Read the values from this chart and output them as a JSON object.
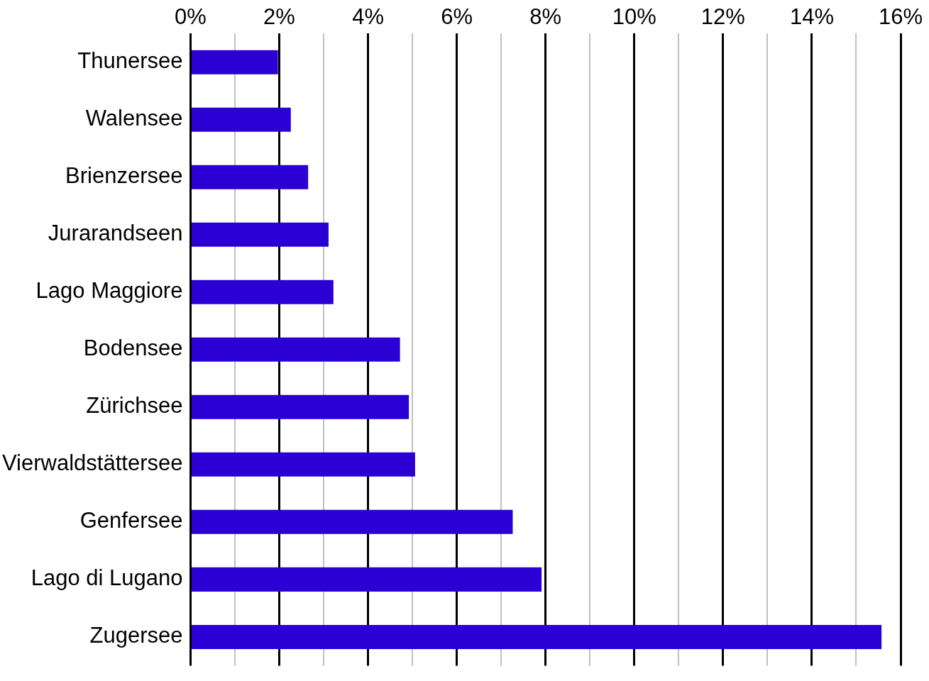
{
  "chart_data": {
    "type": "bar",
    "orientation": "horizontal",
    "categories": [
      "Thunersee",
      "Walensee",
      "Brienzersee",
      "Jurarandseen",
      "Lago Maggiore",
      "Bodensee",
      "Zürichsee",
      "Vierwaldstättersee",
      "Genfersee",
      "Lago di Lugano",
      "Zugersee"
    ],
    "values": [
      1.97,
      2.26,
      2.65,
      3.11,
      3.22,
      4.72,
      4.92,
      5.06,
      7.26,
      7.91,
      15.57
    ],
    "color": "#2a00d4",
    "xlim": [
      0,
      16
    ],
    "xticks": [
      {
        "value": 0,
        "label": "0%"
      },
      {
        "value": 1,
        "label": null
      },
      {
        "value": 2,
        "label": "2%"
      },
      {
        "value": 3,
        "label": null
      },
      {
        "value": 4,
        "label": "4%"
      },
      {
        "value": 5,
        "label": null
      },
      {
        "value": 6,
        "label": "6%"
      },
      {
        "value": 7,
        "label": null
      },
      {
        "value": 8,
        "label": "8%"
      },
      {
        "value": 9,
        "label": null
      },
      {
        "value": 10,
        "label": "10%"
      },
      {
        "value": 11,
        "label": null
      },
      {
        "value": 12,
        "label": "12%"
      },
      {
        "value": 13,
        "label": null
      },
      {
        "value": 14,
        "label": "14%"
      },
      {
        "value": 15,
        "label": null
      },
      {
        "value": 16,
        "label": "16%"
      }
    ],
    "grid": "x",
    "legend": false
  }
}
